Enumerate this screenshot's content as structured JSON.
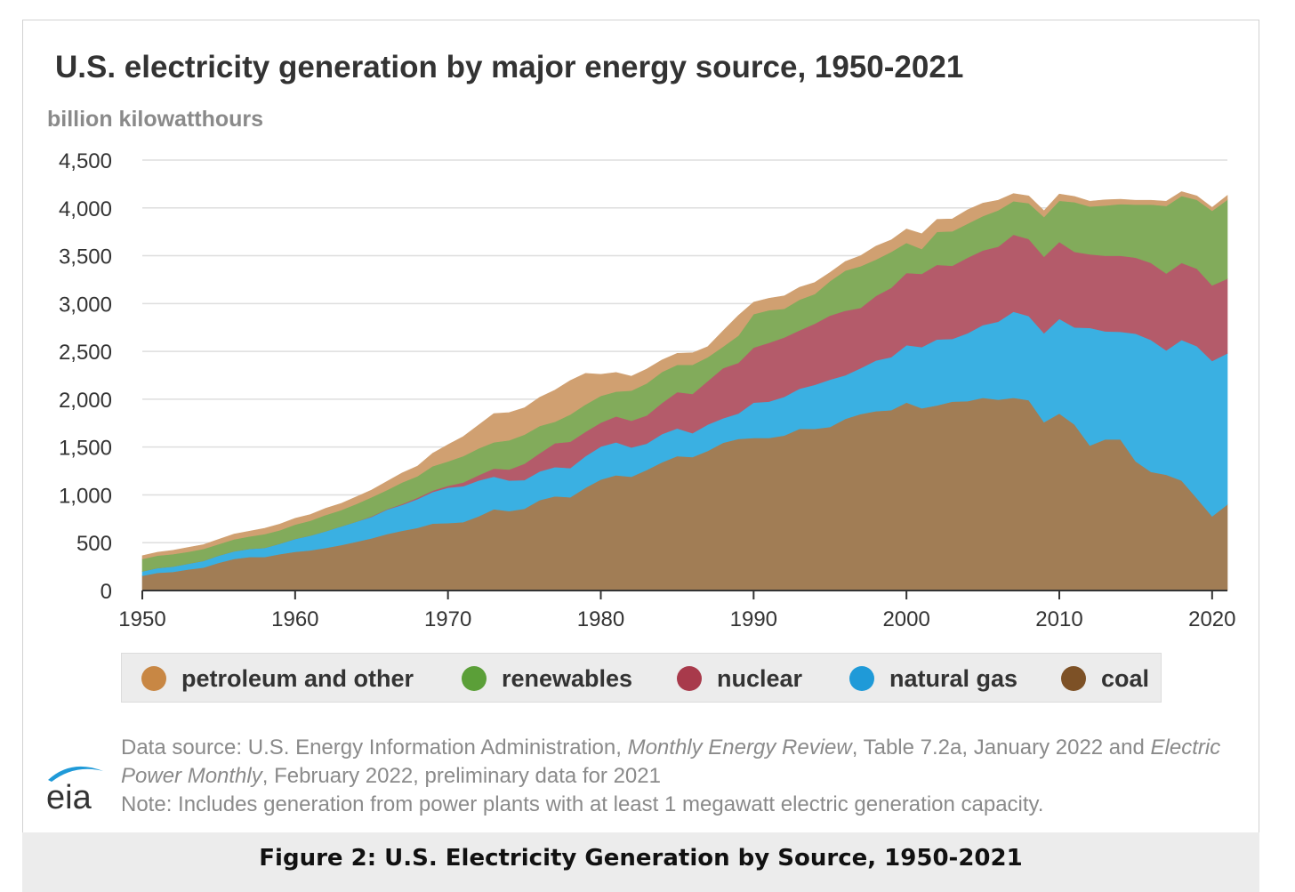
{
  "chart_data": {
    "type": "area",
    "stacked": true,
    "title": "U.S. electricity generation by major energy source, 1950-2021",
    "ylabel": "billion kilowatthours",
    "xlabel": "",
    "xlim": [
      1950,
      2021
    ],
    "ylim": [
      0,
      4500
    ],
    "x_ticks": [
      1950,
      1960,
      1970,
      1980,
      1990,
      2000,
      2010,
      2020
    ],
    "x_tick_labels": [
      "1950",
      "1960",
      "1970",
      "1980",
      "1990",
      "2000",
      "2010",
      "2020"
    ],
    "y_ticks": [
      0,
      500,
      1000,
      1500,
      2000,
      2500,
      3000,
      3500,
      4000,
      4500
    ],
    "y_tick_labels": [
      "0",
      "500",
      "1,000",
      "1,500",
      "2,000",
      "2,500",
      "3,000",
      "3,500",
      "4,000",
      "4,500"
    ],
    "grid": true,
    "legend_position": "bottom",
    "x": [
      1950,
      1951,
      1952,
      1953,
      1954,
      1955,
      1956,
      1957,
      1958,
      1959,
      1960,
      1961,
      1962,
      1963,
      1964,
      1965,
      1966,
      1967,
      1968,
      1969,
      1970,
      1971,
      1972,
      1973,
      1974,
      1975,
      1976,
      1977,
      1978,
      1979,
      1980,
      1981,
      1982,
      1983,
      1984,
      1985,
      1986,
      1987,
      1988,
      1989,
      1990,
      1991,
      1992,
      1993,
      1994,
      1995,
      1996,
      1997,
      1998,
      1999,
      2000,
      2001,
      2002,
      2003,
      2004,
      2005,
      2006,
      2007,
      2008,
      2009,
      2010,
      2011,
      2012,
      2013,
      2014,
      2015,
      2016,
      2017,
      2018,
      2019,
      2020,
      2021
    ],
    "series": [
      {
        "name": "coal",
        "color": "#a17d55",
        "values": [
          155,
          185,
          195,
          220,
          240,
          290,
          330,
          350,
          350,
          380,
          405,
          420,
          445,
          475,
          510,
          545,
          590,
          625,
          655,
          700,
          705,
          715,
          775,
          850,
          830,
          855,
          945,
          985,
          975,
          1075,
          1160,
          1205,
          1190,
          1260,
          1340,
          1405,
          1395,
          1460,
          1545,
          1585,
          1595,
          1595,
          1620,
          1690,
          1690,
          1710,
          1795,
          1845,
          1875,
          1885,
          1965,
          1905,
          1935,
          1975,
          1980,
          2015,
          1995,
          2015,
          1990,
          1760,
          1850,
          1735,
          1515,
          1580,
          1580,
          1350,
          1240,
          1210,
          1150,
          965,
          775,
          900
        ]
      },
      {
        "name": "natural gas",
        "color": "#3ab0e2",
        "values": [
          45,
          50,
          55,
          60,
          70,
          75,
          80,
          85,
          95,
          110,
          135,
          155,
          175,
          195,
          210,
          225,
          255,
          270,
          300,
          330,
          370,
          375,
          375,
          340,
          320,
          300,
          300,
          305,
          305,
          330,
          345,
          345,
          305,
          275,
          295,
          290,
          250,
          275,
          255,
          265,
          370,
          380,
          405,
          420,
          460,
          495,
          455,
          480,
          530,
          555,
          600,
          640,
          690,
          655,
          710,
          760,
          815,
          900,
          880,
          930,
          990,
          1015,
          1230,
          1130,
          1125,
          1335,
          1380,
          1300,
          1470,
          1590,
          1625,
          1580
        ]
      },
      {
        "name": "nuclear",
        "color": "#b45b6a",
        "values": [
          0,
          0,
          0,
          0,
          0,
          0,
          0,
          0,
          0,
          0,
          0,
          0,
          0,
          0,
          0,
          5,
          5,
          10,
          15,
          15,
          20,
          40,
          55,
          85,
          115,
          170,
          190,
          250,
          275,
          255,
          250,
          270,
          280,
          295,
          325,
          380,
          410,
          455,
          525,
          530,
          575,
          615,
          620,
          610,
          640,
          670,
          675,
          630,
          675,
          725,
          755,
          765,
          780,
          765,
          790,
          780,
          785,
          805,
          805,
          800,
          805,
          790,
          770,
          790,
          795,
          795,
          805,
          805,
          805,
          810,
          790,
          780
        ]
      },
      {
        "name": "renewables",
        "color": "#82ab5b",
        "values": [
          130,
          130,
          130,
          125,
          125,
          120,
          125,
          130,
          145,
          140,
          150,
          155,
          170,
          170,
          185,
          200,
          200,
          225,
          225,
          255,
          255,
          275,
          280,
          275,
          305,
          305,
          285,
          225,
          285,
          285,
          280,
          260,
          315,
          335,
          325,
          285,
          305,
          250,
          225,
          285,
          350,
          340,
          300,
          320,
          310,
          360,
          420,
          435,
          380,
          375,
          315,
          260,
          345,
          360,
          355,
          360,
          380,
          350,
          375,
          415,
          430,
          520,
          500,
          525,
          540,
          555,
          610,
          705,
          700,
          720,
          780,
          825
        ]
      },
      {
        "name": "petroleum and other",
        "color": "#d0a071",
        "values": [
          35,
          35,
          40,
          45,
          45,
          50,
          55,
          55,
          60,
          65,
          65,
          65,
          70,
          70,
          75,
          75,
          90,
          100,
          105,
          135,
          175,
          205,
          245,
          300,
          290,
          280,
          300,
          330,
          355,
          325,
          225,
          200,
          150,
          150,
          125,
          120,
          125,
          110,
          165,
          210,
          125,
          125,
          135,
          130,
          120,
          90,
          95,
          110,
          140,
          125,
          145,
          160,
          130,
          130,
          145,
          135,
          105,
          80,
          75,
          65,
          70,
          60,
          55,
          60,
          50,
          45,
          45,
          50,
          45,
          40,
          35,
          45
        ]
      }
    ]
  },
  "legend": {
    "items": [
      {
        "label": "petroleum and other",
        "color": "#c88744"
      },
      {
        "label": "renewables",
        "color": "#5b9f38"
      },
      {
        "label": "nuclear",
        "color": "#a83a4b"
      },
      {
        "label": "natural gas",
        "color": "#1f9ad8"
      },
      {
        "label": "coal",
        "color": "#7d5126"
      }
    ]
  },
  "source": {
    "line1_prefix": "Data source: U.S. Energy Information Administration, ",
    "line1_italic": "Monthly Energy Review",
    "line1_mid": ", Table 7.2a, January 2022 and ",
    "line1_italic2": "Electric",
    "line2_italic": "Power Monthly",
    "line2_suffix": ", February 2022, preliminary data for 2021",
    "note": "Note: Includes generation from power plants with at least 1 megawatt electric generation capacity."
  },
  "logo": {
    "text": "eia",
    "color": "#1f9ad8"
  },
  "caption": "Figure 2: U.S. Electricity Generation by Source, 1950-2021"
}
